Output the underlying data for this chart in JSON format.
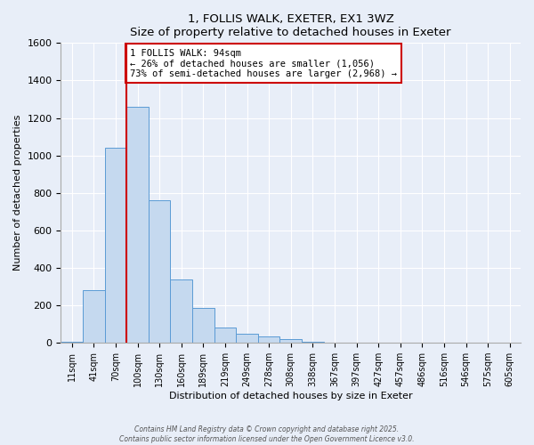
{
  "title": "1, FOLLIS WALK, EXETER, EX1 3WZ",
  "subtitle": "Size of property relative to detached houses in Exeter",
  "xlabel": "Distribution of detached houses by size in Exeter",
  "ylabel": "Number of detached properties",
  "bar_labels": [
    "11sqm",
    "41sqm",
    "70sqm",
    "100sqm",
    "130sqm",
    "160sqm",
    "189sqm",
    "219sqm",
    "249sqm",
    "278sqm",
    "308sqm",
    "338sqm",
    "367sqm",
    "397sqm",
    "427sqm",
    "457sqm",
    "486sqm",
    "516sqm",
    "546sqm",
    "575sqm",
    "605sqm"
  ],
  "bar_values": [
    5,
    280,
    1040,
    1260,
    760,
    340,
    185,
    80,
    50,
    35,
    20,
    5,
    0,
    0,
    0,
    0,
    0,
    0,
    0,
    0,
    0
  ],
  "bar_color": "#c5d9ef",
  "bar_edge_color": "#5b9bd5",
  "vline_x": 3.0,
  "vline_color": "#cc0000",
  "annotation_text": "1 FOLLIS WALK: 94sqm\n← 26% of detached houses are smaller (1,056)\n73% of semi-detached houses are larger (2,968) →",
  "annotation_box_color": "#ffffff",
  "annotation_box_edge": "#cc0000",
  "ylim": [
    0,
    1600
  ],
  "yticks": [
    0,
    200,
    400,
    600,
    800,
    1000,
    1200,
    1400,
    1600
  ],
  "bg_color": "#e8eef8",
  "plot_bg_color": "#e8eef8",
  "grid_color": "#ffffff",
  "footer1": "Contains HM Land Registry data © Crown copyright and database right 2025.",
  "footer2": "Contains public sector information licensed under the Open Government Licence v3.0."
}
